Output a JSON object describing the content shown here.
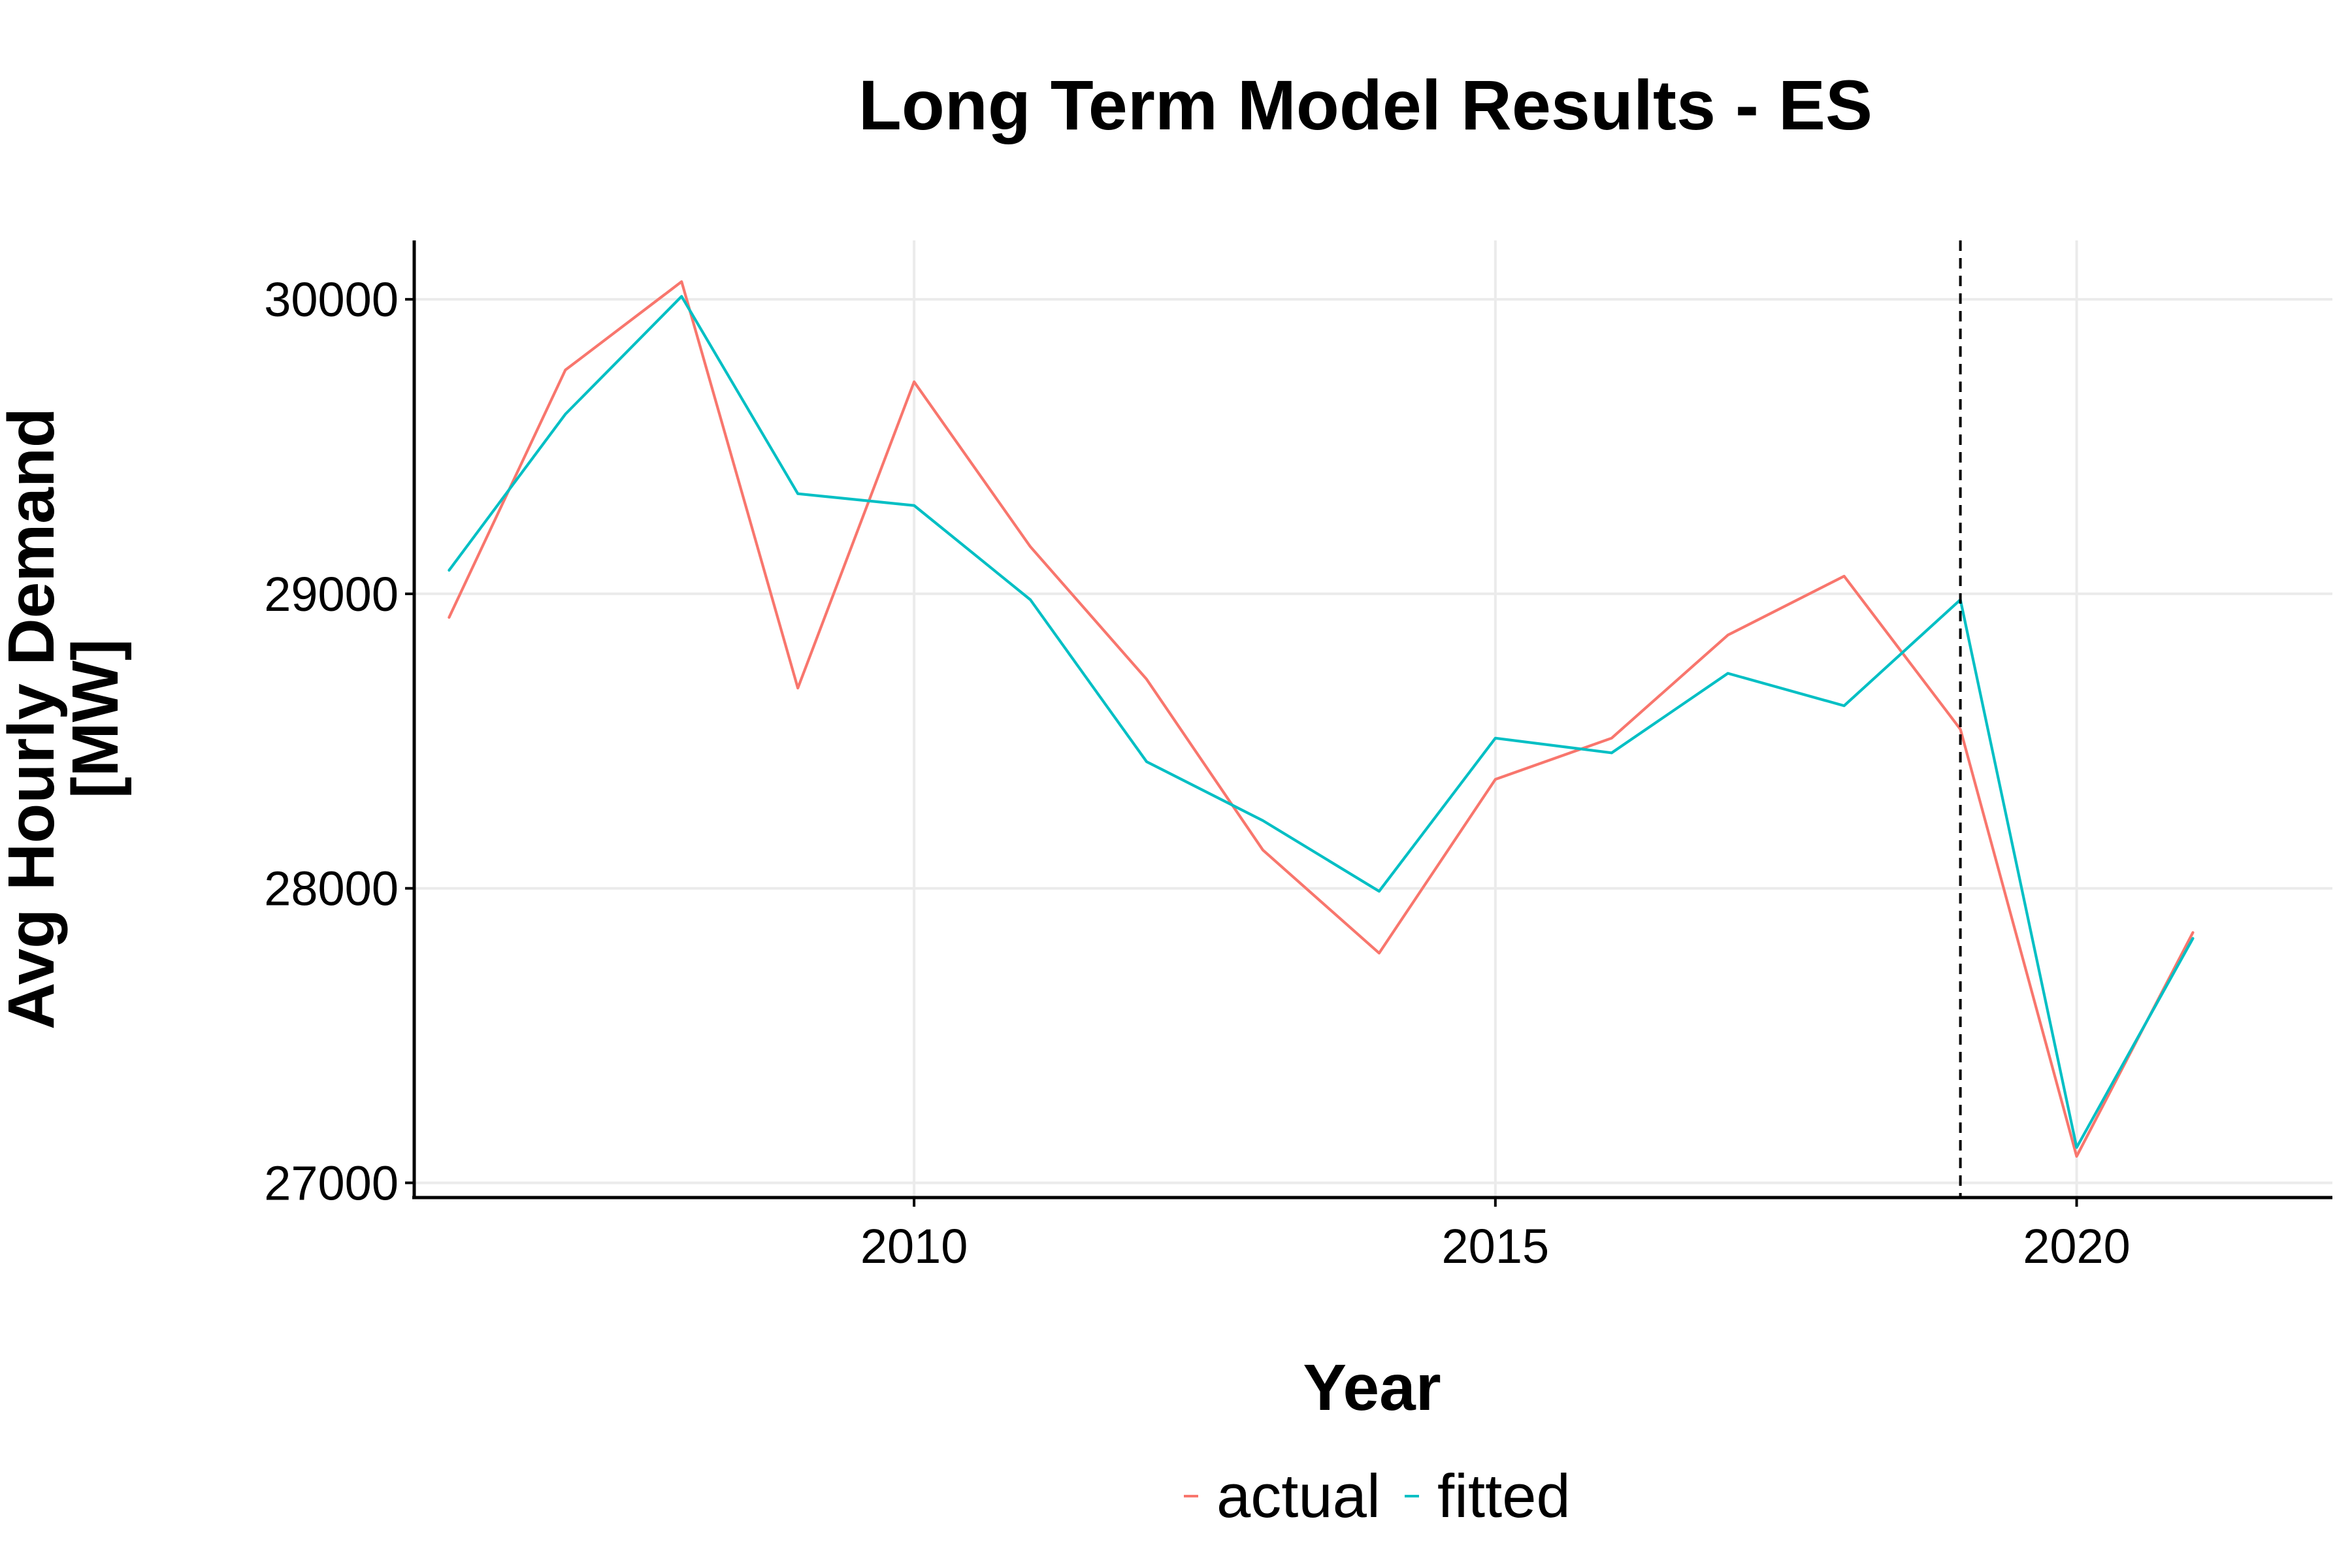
{
  "chart_data": {
    "type": "line",
    "title": "Long Term Model Results - ES",
    "xlabel": "Year",
    "ylabel_lines": [
      "Avg Hourly Demand",
      "[MW]"
    ],
    "x": [
      2006,
      2007,
      2008,
      2009,
      2010,
      2011,
      2012,
      2013,
      2014,
      2015,
      2016,
      2017,
      2018,
      2019,
      2020,
      2021
    ],
    "series": [
      {
        "name": "actual",
        "color": "#F8766D",
        "values": [
          28920,
          29760,
          30060,
          28680,
          29720,
          29160,
          28710,
          28130,
          27780,
          28370,
          28510,
          28860,
          29060,
          28540,
          27090,
          27850
        ]
      },
      {
        "name": "fitted",
        "color": "#00BFC4",
        "values": [
          29080,
          29610,
          30010,
          29340,
          29300,
          28980,
          28430,
          28230,
          27990,
          28510,
          28460,
          28730,
          28620,
          28980,
          27120,
          27830
        ]
      }
    ],
    "xlim": [
      2005.7,
      2022.2
    ],
    "ylim": [
      26950,
      30200
    ],
    "xticks": [
      "2010",
      "2015",
      "2020"
    ],
    "yticks": [
      "27000",
      "28000",
      "29000",
      "30000"
    ],
    "vline": {
      "x": 2019,
      "style": "dashed",
      "color": "#000000"
    },
    "grid": true,
    "legend_position": "bottom"
  }
}
